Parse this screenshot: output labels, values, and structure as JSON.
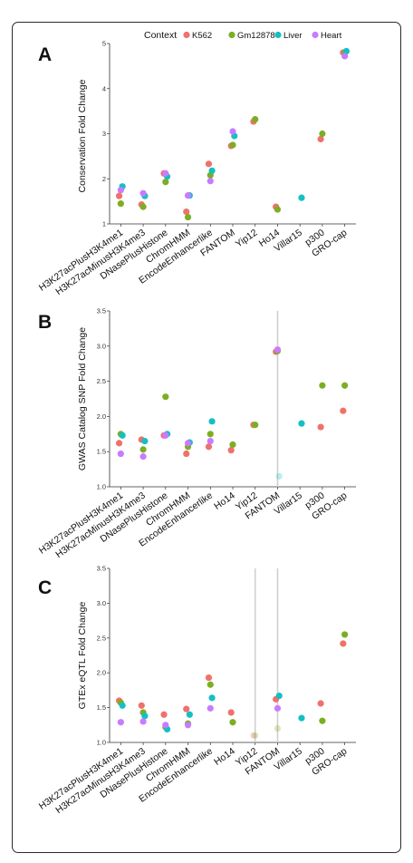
{
  "legend": {
    "title": "Context",
    "entries": [
      {
        "name": "K562",
        "color": "#f0716b"
      },
      {
        "name": "Gm12878",
        "color": "#7cae22"
      },
      {
        "name": "Liver",
        "color": "#15bfc4"
      },
      {
        "name": "Heart",
        "color": "#c77cff"
      }
    ]
  },
  "chart_data": [
    {
      "type": "scatter",
      "panel_label": "A",
      "ylabel": "Conservation Fold Change",
      "ylim": [
        1,
        5
      ],
      "yticks": [
        "1",
        "2",
        "3",
        "4",
        "5"
      ],
      "categories": [
        "H3K27acPlusH3K4me1",
        "H3K27acMinusH3K4me3",
        "DNasePlusHistone",
        "ChromHMM",
        "EncodeEnhancerlike",
        "FANTOM",
        "Yip12",
        "Ho14",
        "Villar15",
        "p300",
        "GRO-cap"
      ],
      "series": [
        {
          "name": "K562",
          "values": [
            1.62,
            1.43,
            2.12,
            1.27,
            2.33,
            2.73,
            3.27,
            1.38,
            null,
            2.88,
            4.8
          ]
        },
        {
          "name": "Gm12878",
          "values": [
            1.45,
            1.38,
            1.93,
            1.15,
            2.08,
            2.75,
            3.32,
            1.32,
            null,
            3.0,
            4.78
          ]
        },
        {
          "name": "Liver",
          "values": [
            1.83,
            1.62,
            2.05,
            1.63,
            2.18,
            2.95,
            null,
            null,
            1.58,
            null,
            4.83
          ]
        },
        {
          "name": "Heart",
          "values": [
            1.75,
            1.68,
            2.12,
            1.63,
            1.95,
            3.05,
            null,
            null,
            null,
            null,
            4.72
          ]
        }
      ],
      "faded": []
    },
    {
      "type": "scatter",
      "panel_label": "B",
      "ylabel": "GWAS Catalog SNP Fold Change",
      "ylim": [
        1.0,
        3.5
      ],
      "yticks": [
        "1.0",
        "1.5",
        "2.0",
        "2.5",
        "3.0",
        "3.5"
      ],
      "categories": [
        "H3K27acPlusH3K4me1",
        "H3K27acMinusH3K4me3",
        "DNasePlusHistone",
        "ChromHMM",
        "EncodeEnhancerlike",
        "Ho14",
        "Yip12",
        "FANTOM",
        "Villar15",
        "p300",
        "GRO-cap"
      ],
      "series": [
        {
          "name": "K562",
          "values": [
            1.62,
            1.67,
            1.73,
            1.47,
            1.57,
            1.52,
            1.88,
            2.92,
            null,
            1.85,
            2.08
          ]
        },
        {
          "name": "Gm12878",
          "values": [
            1.75,
            1.53,
            2.28,
            1.57,
            1.75,
            1.6,
            1.88,
            2.93,
            null,
            2.44,
            2.44
          ]
        },
        {
          "name": "Liver",
          "values": [
            1.73,
            1.65,
            1.75,
            1.63,
            1.93,
            null,
            null,
            1.15,
            1.9,
            null,
            null
          ]
        },
        {
          "name": "Heart",
          "values": [
            1.47,
            1.43,
            1.73,
            1.62,
            1.65,
            null,
            null,
            2.95,
            null,
            null,
            null
          ]
        }
      ],
      "faded": [
        {
          "category": "FANTOM",
          "series": "Liver"
        }
      ]
    },
    {
      "type": "scatter",
      "panel_label": "C",
      "ylabel": "GTEx eQTL Fold Change",
      "ylim": [
        1.0,
        3.5
      ],
      "yticks": [
        "1.0",
        "1.5",
        "2.0",
        "2.5",
        "3.0",
        "3.5"
      ],
      "categories": [
        "H3K27acPlusH3K4me1",
        "H3K27acMinusH3K4me3",
        "DNasePlusHistone",
        "ChromHMM",
        "EncodeEnhancerlike",
        "Ho14",
        "Yip12",
        "FANTOM",
        "Villar15",
        "p300",
        "GRO-cap"
      ],
      "series": [
        {
          "name": "K562",
          "values": [
            1.6,
            1.53,
            1.4,
            1.48,
            1.93,
            1.43,
            1.1,
            1.62,
            null,
            1.56,
            2.42
          ]
        },
        {
          "name": "Gm12878",
          "values": [
            1.57,
            1.43,
            1.22,
            1.27,
            1.83,
            1.29,
            1.1,
            1.2,
            null,
            1.31,
            2.55
          ]
        },
        {
          "name": "Liver",
          "values": [
            1.53,
            1.38,
            1.19,
            1.4,
            1.64,
            null,
            null,
            1.67,
            1.35,
            null,
            null
          ]
        },
        {
          "name": "Heart",
          "values": [
            1.29,
            1.3,
            1.25,
            1.25,
            1.49,
            null,
            null,
            1.49,
            null,
            null,
            null
          ]
        }
      ],
      "faded": [
        {
          "category": "Yip12",
          "series": "K562"
        },
        {
          "category": "Yip12",
          "series": "Gm12878"
        },
        {
          "category": "FANTOM",
          "series": "Gm12878"
        }
      ]
    }
  ]
}
